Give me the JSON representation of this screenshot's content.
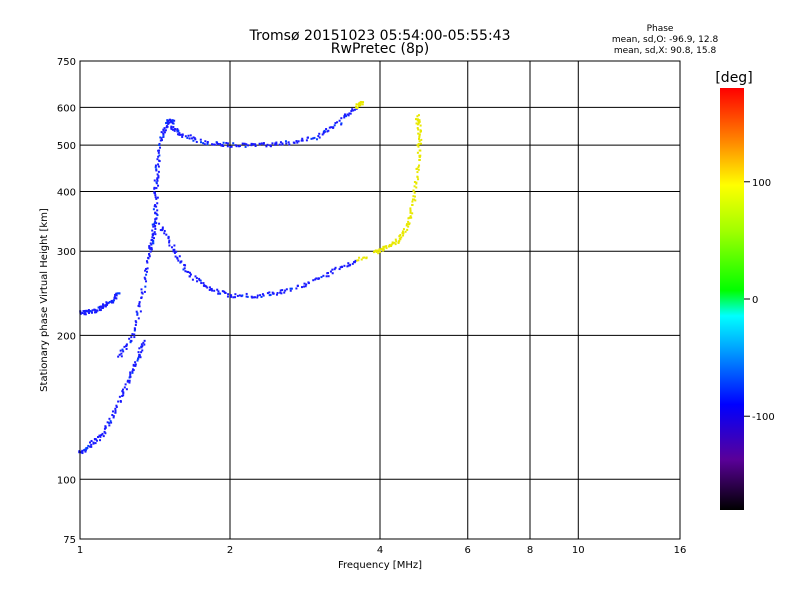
{
  "chart_data": {
    "type": "scatter",
    "title": "Tromsø 20151023 05:54:00-05:55:43",
    "subtitle": "RwPretec (8p)",
    "xlabel": "Frequency [MHz]",
    "ylabel": "Stationary phase Virtual Height [km]",
    "x_scale": "log",
    "y_scale": "log",
    "xlim": [
      1,
      16
    ],
    "ylim": [
      75,
      750
    ],
    "x_ticks": [
      1,
      2,
      4,
      6,
      8,
      10,
      16
    ],
    "y_ticks": [
      75,
      100,
      200,
      300,
      400,
      500,
      600,
      750
    ],
    "grid": true,
    "info": {
      "heading": "Phase",
      "line_o": "mean, sd,O:  -96.9, 12.8",
      "line_x": "mean, sd,X:  90.8, 15.8"
    },
    "colorbar": {
      "label": "[deg]",
      "range": [
        -180,
        180
      ],
      "ticks": [
        100,
        0,
        -100
      ],
      "tick_labels": [
        "100",
        "0",
        "-100"
      ]
    },
    "traces": [
      {
        "segments": [
          [
            [
              1.0,
              223
            ],
            [
              1.05,
              224
            ],
            [
              1.1,
              227
            ],
            [
              1.15,
              235
            ],
            [
              1.2,
              245
            ]
          ],
          [
            [
              1.2,
              180
            ],
            [
              1.28,
              200
            ],
            [
              1.33,
              240
            ],
            [
              1.38,
              295
            ],
            [
              1.4,
              320
            ],
            [
              1.42,
              350
            ],
            [
              1.42,
              400
            ],
            [
              1.43,
              450
            ],
            [
              1.46,
              520
            ],
            [
              1.5,
              560
            ],
            [
              1.55,
              560
            ]
          ],
          [
            [
              1.52,
              545
            ],
            [
              1.6,
              525
            ],
            [
              1.8,
              505
            ],
            [
              2.0,
              500
            ],
            [
              2.3,
              500
            ],
            [
              2.6,
              505
            ],
            [
              3.0,
              520
            ],
            [
              3.3,
              555
            ],
            [
              3.6,
              600
            ],
            [
              3.7,
              620
            ]
          ],
          [
            [
              1.45,
              340
            ],
            [
              1.55,
              300
            ],
            [
              1.65,
              270
            ],
            [
              1.8,
              252
            ],
            [
              2.0,
              242
            ],
            [
              2.3,
              242
            ],
            [
              2.6,
              248
            ],
            [
              3.0,
              262
            ],
            [
              3.4,
              280
            ],
            [
              3.8,
              292
            ]
          ],
          [
            [
              3.9,
              298
            ],
            [
              4.1,
              305
            ],
            [
              4.4,
              318
            ],
            [
              4.6,
              350
            ],
            [
              4.7,
              400
            ],
            [
              4.8,
              470
            ],
            [
              4.8,
              530
            ],
            [
              4.75,
              580
            ]
          ]
        ],
        "phase": "mixed"
      },
      {
        "segments": [
          [
            [
              1.0,
              113
            ],
            [
              1.05,
              118
            ],
            [
              1.12,
              125
            ],
            [
              1.18,
              140
            ],
            [
              1.25,
              160
            ],
            [
              1.3,
              178
            ],
            [
              1.35,
              195
            ]
          ]
        ],
        "phase": -110
      }
    ]
  }
}
